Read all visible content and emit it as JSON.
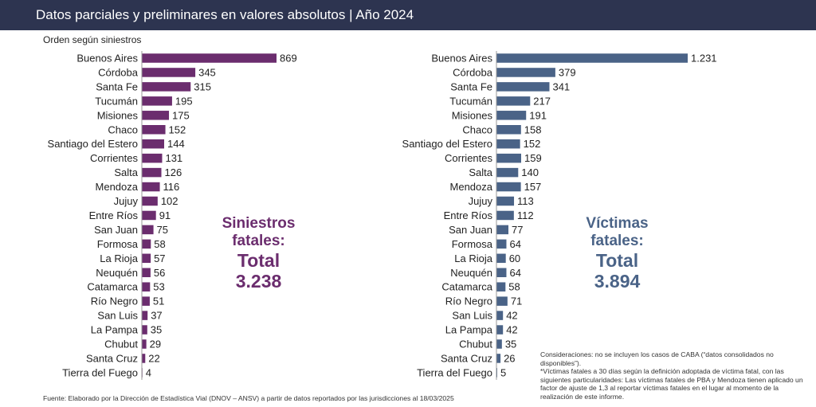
{
  "header": {
    "title": "Datos parciales y preliminares en valores absolutos | Año 2024"
  },
  "subtitle": "Orden según siniestros",
  "colors": {
    "header_bg": "#2d3450",
    "siniestros_bar": "#6b2d6e",
    "victimas_bar": "#4a6387"
  },
  "totals": {
    "siniestros": {
      "label_line1": "Siniestros",
      "label_line2": "fatales:",
      "label_line3": "Total",
      "value": "3.238"
    },
    "victimas": {
      "label_line1": "Víctimas",
      "label_line2": "fatales:",
      "label_line3": "Total",
      "value": "3.894"
    }
  },
  "notes": {
    "line1": "Consideraciones: no se incluyen los casos de CABA (“datos consolidados no disponibles”).",
    "line2": "*Víctimas fatales a 30 días según la definición adoptada de víctima fatal, con las siguientes particularidades: Las víctimas fatales de PBA y Mendoza tienen aplicado un factor de ajuste de 1,3 al reportar víctimas fatales en el lugar al momento de la realización de este informe."
  },
  "source": "Fuente: Elaborado por la Dirección de Estadística Vial (DNOV – ANSV) a partir de datos reportados por las jurisdicciones al 18/03/2025",
  "chart_data": [
    {
      "type": "bar",
      "orientation": "horizontal",
      "categories": [
        "Buenos Aires",
        "Córdoba",
        "Santa Fe",
        "Tucumán",
        "Misiones",
        "Chaco",
        "Santiago del Estero",
        "Corrientes",
        "Salta",
        "Mendoza",
        "Jujuy",
        "Entre Ríos",
        "San Juan",
        "Formosa",
        "La Rioja",
        "Neuquén",
        "Catamarca",
        "Río Negro",
        "San Luis",
        "La Pampa",
        "Chubut",
        "Santa Cruz",
        "Tierra del Fuego"
      ],
      "values": [
        869,
        345,
        315,
        195,
        175,
        152,
        144,
        131,
        126,
        116,
        102,
        91,
        75,
        58,
        57,
        56,
        53,
        51,
        37,
        35,
        29,
        22,
        4
      ],
      "value_labels": [
        "869",
        "345",
        "315",
        "195",
        "175",
        "152",
        "144",
        "131",
        "126",
        "116",
        "102",
        "91",
        "75",
        "58",
        "57",
        "56",
        "53",
        "51",
        "37",
        "35",
        "29",
        "22",
        "4"
      ],
      "color": "#6b2d6e"
    },
    {
      "type": "bar",
      "orientation": "horizontal",
      "categories": [
        "Buenos Aires",
        "Córdoba",
        "Santa Fe",
        "Tucumán",
        "Misiones",
        "Chaco",
        "Santiago del Estero",
        "Corrientes",
        "Salta",
        "Mendoza",
        "Jujuy",
        "Entre Ríos",
        "San Juan",
        "Formosa",
        "La Rioja",
        "Neuquén",
        "Catamarca",
        "Río Negro",
        "San Luis",
        "La Pampa",
        "Chubut",
        "Santa Cruz",
        "Tierra del Fuego"
      ],
      "values": [
        1231,
        379,
        341,
        217,
        191,
        158,
        152,
        159,
        140,
        157,
        113,
        112,
        77,
        64,
        60,
        64,
        58,
        71,
        42,
        42,
        35,
        26,
        5
      ],
      "value_labels": [
        "1.231",
        "379",
        "341",
        "217",
        "191",
        "158",
        "152",
        "159",
        "140",
        "157",
        "113",
        "112",
        "77",
        "64",
        "60",
        "64",
        "58",
        "71",
        "42",
        "42",
        "35",
        "26",
        "5"
      ],
      "color": "#4a6387"
    }
  ]
}
